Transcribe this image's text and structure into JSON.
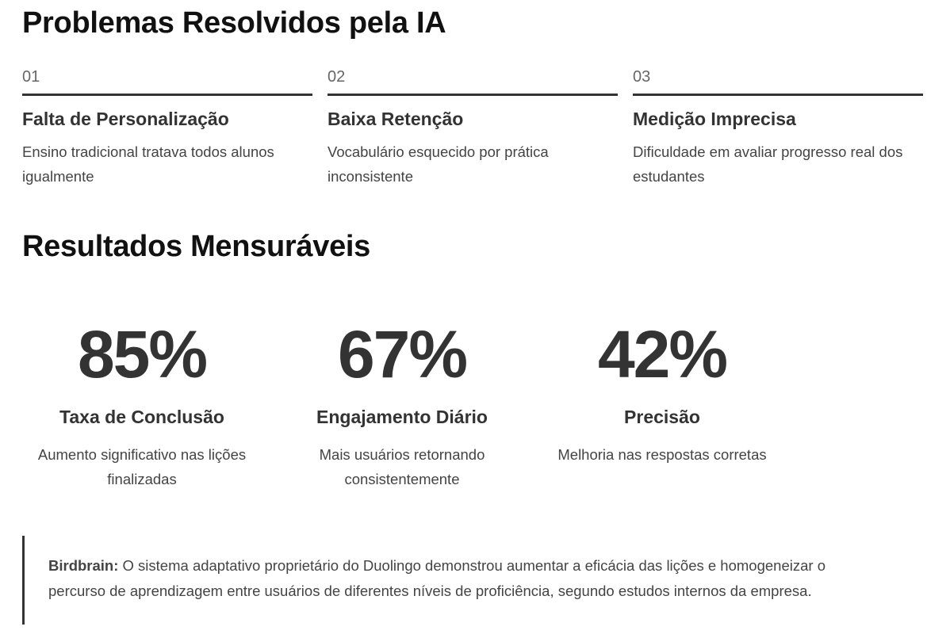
{
  "problems": {
    "title": "Problemas Resolvidos pela IA",
    "items": [
      {
        "number": "01",
        "heading": "Falta de Personalização",
        "text": "Ensino tradicional tratava todos alunos igualmente"
      },
      {
        "number": "02",
        "heading": "Baixa Retenção",
        "text": "Vocabulário esquecido por prática inconsistente"
      },
      {
        "number": "03",
        "heading": "Medição Imprecisa",
        "text": "Dificuldade em avaliar progresso real dos estudantes"
      }
    ]
  },
  "results": {
    "title": "Resultados Mensuráveis",
    "items": [
      {
        "stat": "85%",
        "heading": "Taxa de Conclusão",
        "text": "Aumento significativo nas lições finalizadas"
      },
      {
        "stat": "67%",
        "heading": "Engajamento Diário",
        "text": "Mais usuários retornando consistentemente"
      },
      {
        "stat": "42%",
        "heading": "Precisão",
        "text": "Melhoria nas respostas corretas"
      }
    ]
  },
  "note": {
    "label": "Birdbrain:",
    "text": "O sistema adaptativo proprietário do Duolingo demonstrou aumentar a eficácia das lições e homogeneizar o percurso de aprendizagem entre usuários de diferentes níveis de proficiência, segundo estudos internos da empresa."
  }
}
